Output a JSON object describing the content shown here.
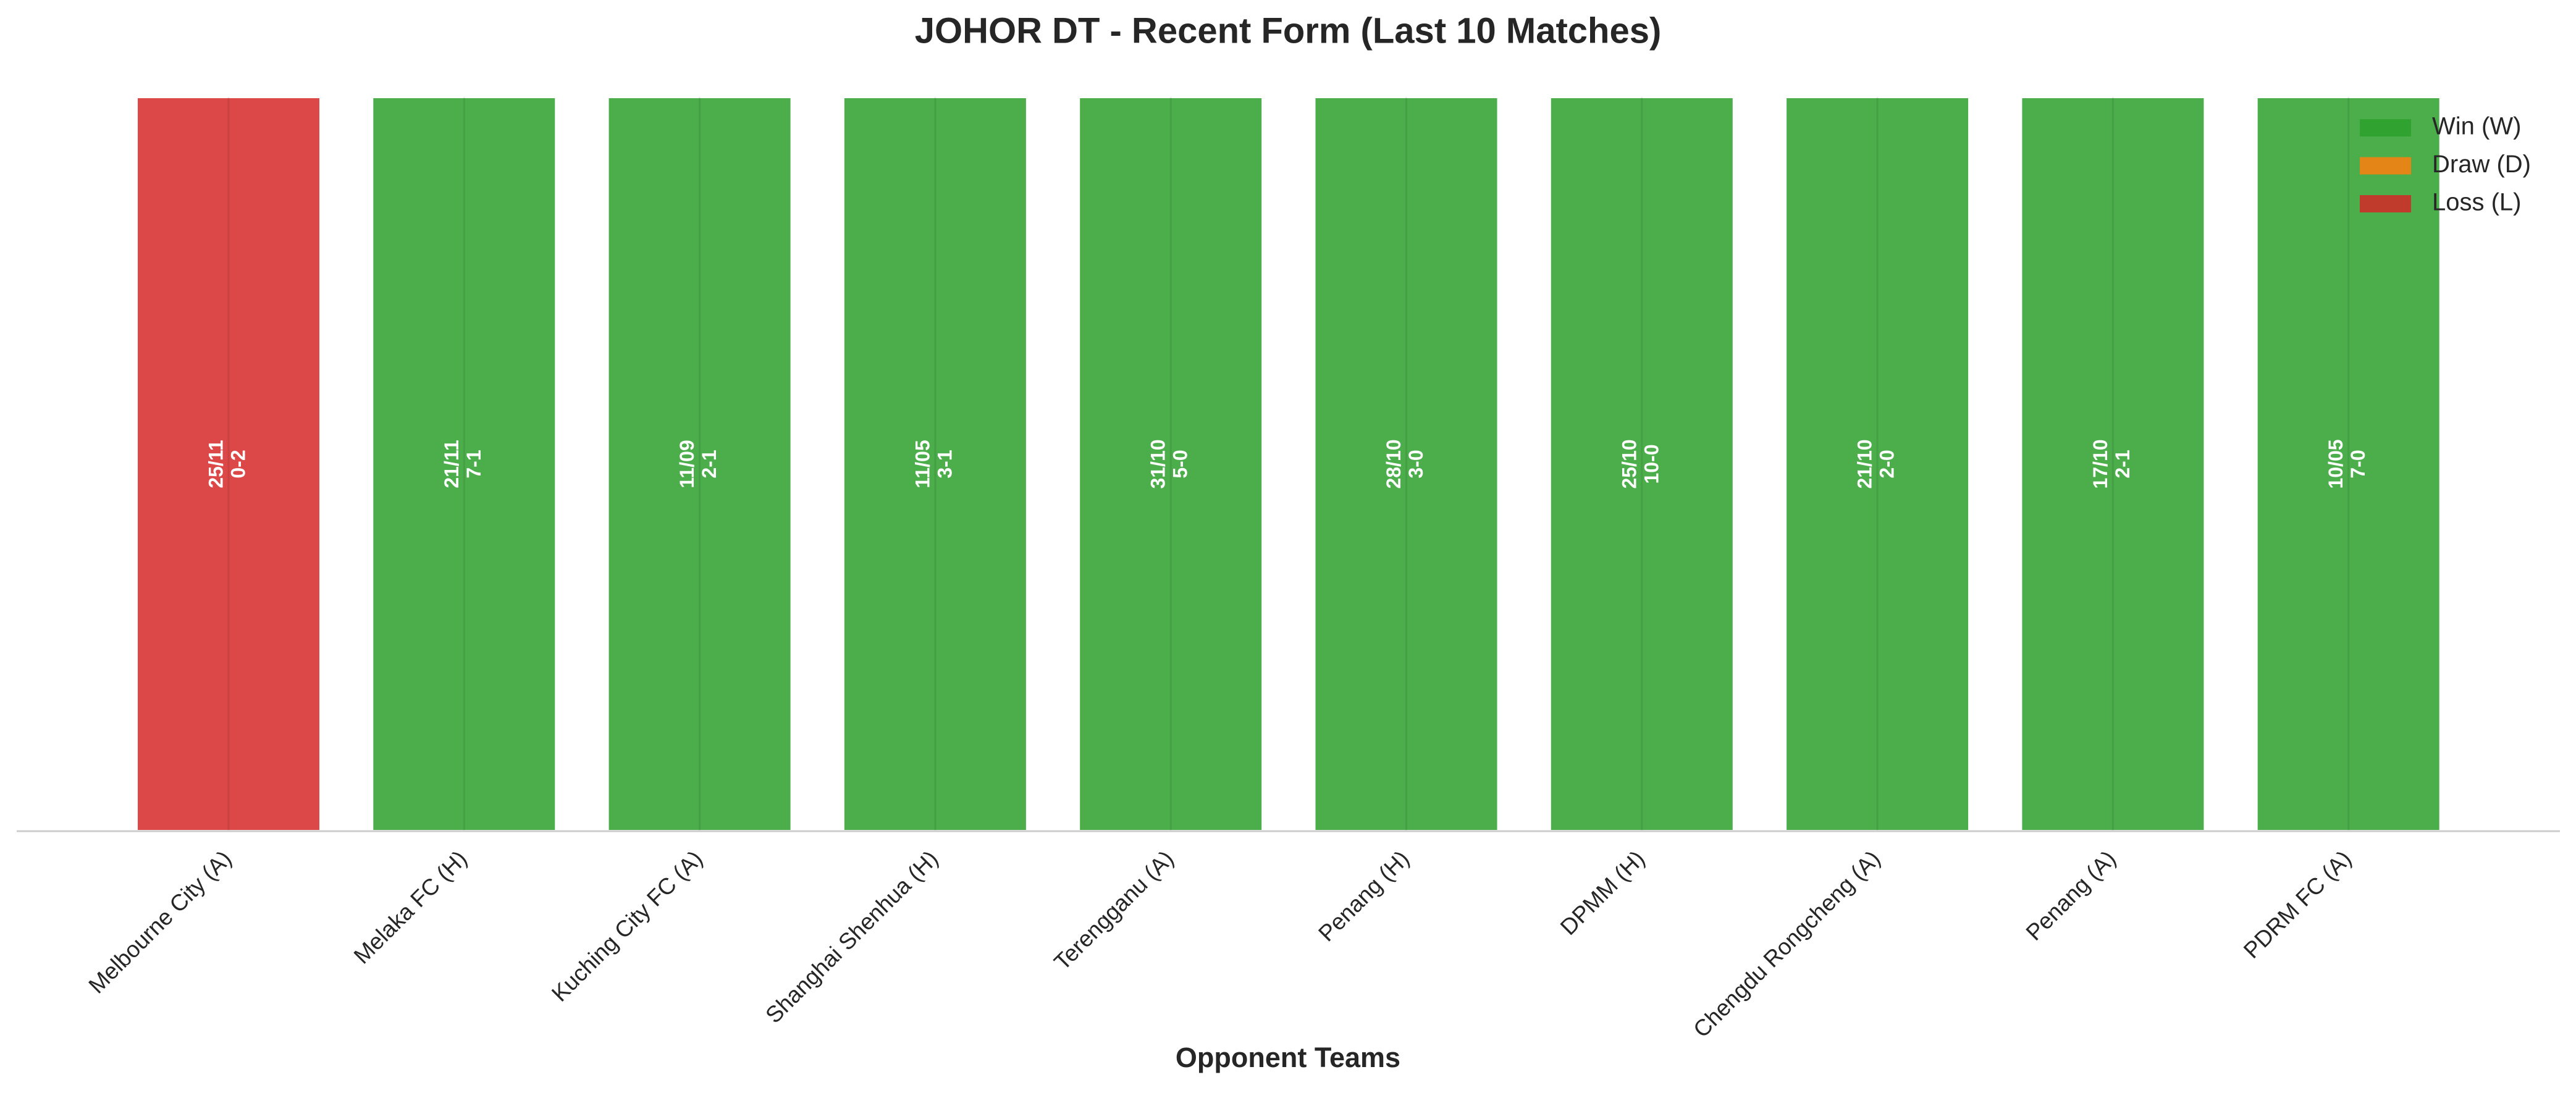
{
  "chart_data": {
    "type": "bar",
    "title": "JOHOR DT - Recent Form (Last 10 Matches)",
    "x_label": "Opponent Teams",
    "categories": [
      "Melbourne City (A)",
      "Melaka FC (H)",
      "Kuching City FC (A)",
      "Shanghai Shenhua (H)",
      "Terengganu (A)",
      "Penang (H)",
      "DPMM (H)",
      "Chengdu Rongcheng (A)",
      "Penang (A)",
      "PDRM FC (A)"
    ],
    "values": [
      1,
      1,
      1,
      1,
      1,
      1,
      1,
      1,
      1,
      1
    ],
    "dates": [
      "25/11",
      "21/11",
      "11/09",
      "11/05",
      "31/10",
      "28/10",
      "25/10",
      "21/10",
      "17/10",
      "10/05"
    ],
    "scores": [
      "0-2",
      "7-1",
      "2-1",
      "3-1",
      "5-0",
      "3-0",
      "10-0",
      "2-0",
      "2-1",
      "7-0"
    ],
    "colors": [
      "#d62728",
      "#2ca02c",
      "#2ca02c",
      "#2ca02c",
      "#2ca02c",
      "#2ca02c",
      "#2ca02c",
      "#2ca02c",
      "#2ca02c",
      "#2ca02c"
    ],
    "ylim": [
      0,
      1
    ],
    "legend": [
      {
        "name": "Win (W)",
        "color": "#2ca02c"
      },
      {
        "name": "Draw (D)",
        "color": "#ff7f0e"
      },
      {
        "name": "Loss (L)",
        "color": "#d62728"
      }
    ],
    "legend_position": "upper right"
  }
}
